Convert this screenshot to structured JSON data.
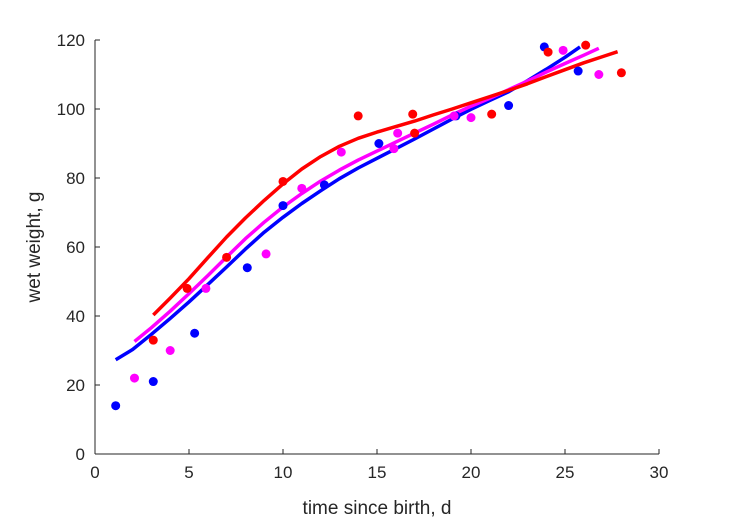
{
  "chart_data": {
    "type": "scatter",
    "title": "",
    "xlabel": "time since birth, d",
    "ylabel": "wet weight, g",
    "xlim": [
      0,
      30
    ],
    "ylim": [
      0,
      120
    ],
    "xticks": [
      0,
      5,
      10,
      15,
      20,
      25,
      30
    ],
    "yticks": [
      0,
      20,
      40,
      60,
      80,
      100,
      120
    ],
    "grid": false,
    "legend": "none",
    "series": [
      {
        "color": "#0000ff",
        "points": [
          [
            1.1,
            14
          ],
          [
            3.1,
            21
          ],
          [
            5.3,
            35
          ],
          [
            8.1,
            54
          ],
          [
            10.0,
            72
          ],
          [
            12.2,
            78
          ],
          [
            15.1,
            90
          ],
          [
            19.2,
            98
          ],
          [
            22.0,
            101
          ],
          [
            23.9,
            118
          ],
          [
            25.7,
            111
          ]
        ],
        "curve": [
          [
            1.1,
            27.3
          ],
          [
            2,
            30.3
          ],
          [
            3,
            34.7
          ],
          [
            4,
            39.3
          ],
          [
            5,
            44.1
          ],
          [
            6,
            49.1
          ],
          [
            7,
            54.2
          ],
          [
            8,
            59.4
          ],
          [
            9,
            64.3
          ],
          [
            10,
            68.6
          ],
          [
            11,
            72.6
          ],
          [
            12,
            76.3
          ],
          [
            13,
            79.8
          ],
          [
            14,
            82.9
          ],
          [
            15,
            85.7
          ],
          [
            16,
            88.5
          ],
          [
            17,
            91.3
          ],
          [
            18,
            94.2
          ],
          [
            19,
            97.1
          ],
          [
            20,
            99.9
          ],
          [
            21,
            102.5
          ],
          [
            22,
            105.0
          ],
          [
            23,
            108.2
          ],
          [
            24,
            111.5
          ],
          [
            25,
            115.0
          ],
          [
            25.8,
            118.0
          ]
        ]
      },
      {
        "color": "#ff00ff",
        "points": [
          [
            2.1,
            22
          ],
          [
            4.0,
            30
          ],
          [
            5.9,
            48
          ],
          [
            9.1,
            58
          ],
          [
            11.0,
            77
          ],
          [
            13.1,
            87.5
          ],
          [
            15.9,
            88.5
          ],
          [
            16.1,
            93
          ],
          [
            19.1,
            98
          ],
          [
            20.0,
            97.5
          ],
          [
            24.9,
            117
          ],
          [
            26.8,
            110
          ]
        ],
        "curve": [
          [
            2.1,
            32.6
          ],
          [
            3,
            36.6
          ],
          [
            4,
            41.4
          ],
          [
            5,
            46.5
          ],
          [
            6,
            51.7
          ],
          [
            7,
            57.1
          ],
          [
            8,
            62.4
          ],
          [
            9,
            67.2
          ],
          [
            10,
            71.6
          ],
          [
            11,
            75.5
          ],
          [
            12,
            79.1
          ],
          [
            13,
            82.3
          ],
          [
            14,
            85.2
          ],
          [
            15,
            87.8
          ],
          [
            16,
            90.4
          ],
          [
            17,
            93.0
          ],
          [
            18,
            95.6
          ],
          [
            19,
            98.3
          ],
          [
            20,
            100.8
          ],
          [
            21,
            103.1
          ],
          [
            22,
            105.6
          ],
          [
            23,
            108.1
          ],
          [
            24,
            110.7
          ],
          [
            25,
            113.2
          ],
          [
            26,
            115.6
          ],
          [
            26.8,
            117.6
          ]
        ]
      },
      {
        "color": "#ff0000",
        "points": [
          [
            3.1,
            33
          ],
          [
            4.9,
            48
          ],
          [
            7.0,
            57
          ],
          [
            10.0,
            79
          ],
          [
            14.0,
            98
          ],
          [
            16.9,
            98.5
          ],
          [
            17.0,
            93
          ],
          [
            21.1,
            98.5
          ],
          [
            24.1,
            116.5
          ],
          [
            26.1,
            118.5
          ],
          [
            28.0,
            110.5
          ]
        ],
        "curve": [
          [
            3.1,
            40.3
          ],
          [
            4,
            45.2
          ],
          [
            5,
            50.8
          ],
          [
            6,
            56.9
          ],
          [
            7,
            62.9
          ],
          [
            8,
            68.4
          ],
          [
            9,
            73.5
          ],
          [
            10,
            78.3
          ],
          [
            11,
            82.6
          ],
          [
            12,
            86.2
          ],
          [
            13,
            89.2
          ],
          [
            14,
            91.5
          ],
          [
            15,
            93.3
          ],
          [
            16,
            94.9
          ],
          [
            17,
            96.5
          ],
          [
            18,
            98.3
          ],
          [
            19,
            100.0
          ],
          [
            20,
            101.8
          ],
          [
            21,
            103.6
          ],
          [
            22,
            105.4
          ],
          [
            23,
            107.3
          ],
          [
            24,
            109.4
          ],
          [
            25,
            111.4
          ],
          [
            26,
            113.4
          ],
          [
            27,
            115.2
          ],
          [
            27.8,
            116.6
          ]
        ]
      }
    ]
  }
}
